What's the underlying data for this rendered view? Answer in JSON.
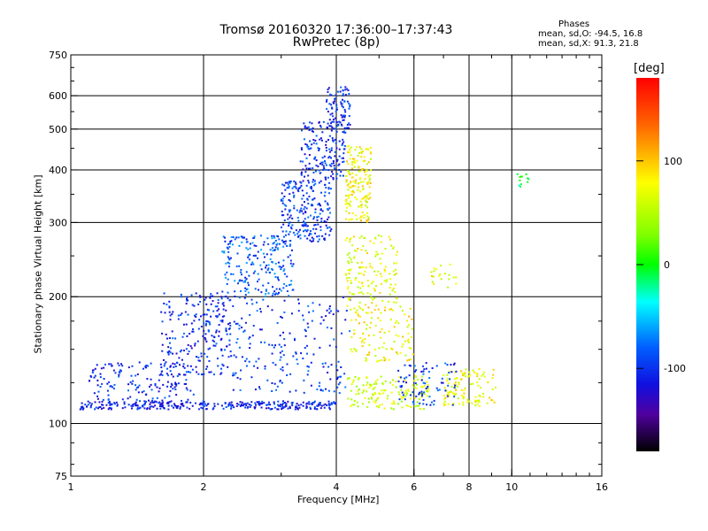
{
  "chart_data": {
    "type": "scatter",
    "title_line1": "Tromsø 20160320 17:36:00–17:37:43",
    "title_line2": "RwPretec (8p)",
    "legend": {
      "heading": "Phases",
      "line_o": "mean, sd,O: -94.5, 16.8",
      "line_x": "mean, sd,X:  91.3, 21.8"
    },
    "xlabel": "Frequency [MHz]",
    "ylabel": "Stationary phase Virtual Height [km]",
    "x_scale": "log",
    "y_scale": "log",
    "xlim": [
      1,
      16
    ],
    "ylim": [
      75,
      750
    ],
    "x_ticks": [
      {
        "value": 1,
        "label": "1"
      },
      {
        "value": 2,
        "label": "2"
      },
      {
        "value": 4,
        "label": "4"
      },
      {
        "value": 6,
        "label": "6"
      },
      {
        "value": 8,
        "label": "8"
      },
      {
        "value": 10,
        "label": "10"
      },
      {
        "value": 16,
        "label": "16"
      }
    ],
    "y_ticks": [
      {
        "value": 75,
        "label": "75"
      },
      {
        "value": 100,
        "label": "100"
      },
      {
        "value": 200,
        "label": "200"
      },
      {
        "value": 300,
        "label": "300"
      },
      {
        "value": 400,
        "label": "400"
      },
      {
        "value": 500,
        "label": "500"
      },
      {
        "value": 600,
        "label": "600"
      },
      {
        "value": 750,
        "label": "750"
      }
    ],
    "grid_x": [
      2,
      4,
      6,
      8,
      10
    ],
    "grid_y": [
      100,
      200,
      300,
      400,
      500,
      600
    ],
    "grid": true,
    "colorbar": {
      "label": "[deg]",
      "range": [
        -180,
        180
      ],
      "ticks": [
        {
          "value": 100,
          "label": "100"
        },
        {
          "value": 0,
          "label": "0"
        },
        {
          "value": -100,
          "label": "-100"
        }
      ]
    },
    "clusters": [
      {
        "x": [
          1.05,
          4.0
        ],
        "y": [
          108,
          113
        ],
        "phase": -105,
        "n": 320
      },
      {
        "x": [
          1.1,
          1.9
        ],
        "y": [
          113,
          140
        ],
        "phase": -100,
        "n": 150
      },
      {
        "x": [
          1.6,
          2.3
        ],
        "y": [
          130,
          205
        ],
        "phase": -100,
        "n": 200
      },
      {
        "x": [
          2.2,
          3.2
        ],
        "y": [
          200,
          280
        ],
        "phase": -85,
        "n": 220
      },
      {
        "x": [
          3.0,
          3.9
        ],
        "y": [
          270,
          380
        ],
        "phase": -95,
        "n": 220
      },
      {
        "x": [
          3.3,
          4.2
        ],
        "y": [
          380,
          520
        ],
        "phase": -100,
        "n": 160
      },
      {
        "x": [
          3.8,
          4.3
        ],
        "y": [
          500,
          630
        ],
        "phase": -100,
        "n": 90
      },
      {
        "x": [
          2.0,
          4.3
        ],
        "y": [
          150,
          200
        ],
        "phase": -95,
        "n": 130
      },
      {
        "x": [
          2.3,
          4.2
        ],
        "y": [
          118,
          150
        ],
        "phase": -95,
        "n": 100
      },
      {
        "x": [
          4.2,
          4.8
        ],
        "y": [
          300,
          460
        ],
        "phase": 95,
        "n": 170
      },
      {
        "x": [
          4.2,
          5.5
        ],
        "y": [
          190,
          280
        ],
        "phase": 90,
        "n": 150
      },
      {
        "x": [
          4.3,
          6.0
        ],
        "y": [
          140,
          190
        ],
        "phase": 95,
        "n": 120
      },
      {
        "x": [
          4.2,
          6.5
        ],
        "y": [
          108,
          130
        ],
        "phase": 80,
        "n": 150
      },
      {
        "x": [
          7.0,
          9.2
        ],
        "y": [
          110,
          135
        ],
        "phase": 95,
        "n": 120
      },
      {
        "x": [
          5.5,
          7.5
        ],
        "y": [
          110,
          140
        ],
        "phase": -95,
        "n": 80
      },
      {
        "x": [
          6.5,
          7.5
        ],
        "y": [
          210,
          240
        ],
        "phase": 90,
        "n": 20
      },
      {
        "x": [
          10.3,
          11.0
        ],
        "y": [
          365,
          395
        ],
        "phase": -10,
        "n": 12
      }
    ]
  }
}
